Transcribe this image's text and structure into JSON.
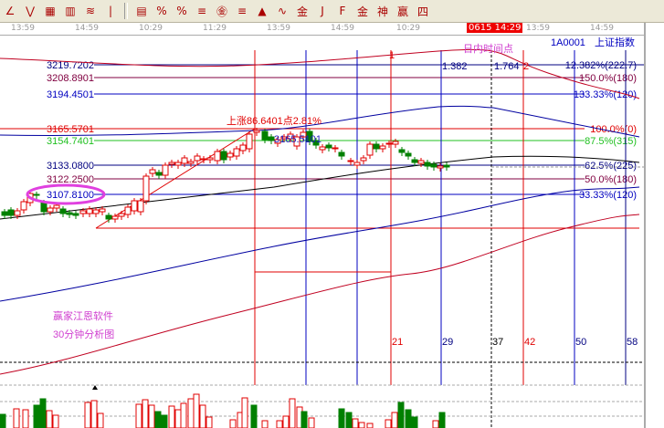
{
  "toolbar": {
    "icons": [
      "line-tool",
      "fan-tool",
      "zigzag-tool",
      "grid-tool",
      "grid-box-tool",
      "parallel-tool",
      "bar-tool",
      "percent-line-tool",
      "percent-tool",
      "percent-level-tool",
      "gold-circle-tool",
      "gold-level-tool",
      "arrow-tool",
      "cycle-tool",
      "gold-tool",
      "j-angle-tool",
      "f-angle-tool",
      "gold-angle-tool",
      "angle-tool-1",
      "angle-tool-2",
      "angle-tool-3"
    ],
    "labels": [
      "%",
      "%",
      "金",
      "金",
      "金",
      "J",
      "F",
      "金",
      "神",
      "赢",
      "四"
    ]
  },
  "time_axis": {
    "ticks": [
      "13:59",
      "14:59",
      "10:29",
      "11:29",
      "13:59",
      "14:59",
      "10:29",
      "13:59",
      "14:59"
    ],
    "highlight": "0615 14:29"
  },
  "header": {
    "symbol": "1A0001",
    "name": "上证指数",
    "intraday_label": "日内时间点"
  },
  "price_levels": [
    {
      "price": "3219.7202",
      "ratio": "12.382%(222.7)",
      "color": "#000080"
    },
    {
      "price": "3208.8901",
      "ratio": "150.0%(180)",
      "color": "#800040"
    },
    {
      "price": "3194.4501",
      "ratio": "133.33%(120)",
      "color": "#0000c0"
    },
    {
      "price": "3165.5701",
      "ratio": "100.0%(0)",
      "color": "#e00000"
    },
    {
      "price": "3154.7401",
      "ratio": "87.5%(315)",
      "color": "#20c020"
    },
    {
      "price": "3133.0800",
      "ratio": "62.5%(225)",
      "color": "#000080"
    },
    {
      "price": "3122.2500",
      "ratio": "50.0%(180)",
      "color": "#800040"
    },
    {
      "price": "3107.8100",
      "ratio": "33.33%(120)",
      "color": "#0000c0"
    }
  ],
  "annotations": {
    "rise": "上涨86.6401点2.81%",
    "peak_price": "3165.5101",
    "fib1": "1.382",
    "fib2": "1.764",
    "mark1": "1",
    "mark2": "2"
  },
  "time_cycle_numbers": [
    "21",
    "29",
    "37",
    "42",
    "50",
    "58"
  ],
  "watermark": [
    "赢家江恩软件",
    "30分钟分析图"
  ],
  "colors": {
    "up": "#e00000",
    "down": "#008000",
    "highlight": "#e00000",
    "watermark": "#d040d0"
  }
}
